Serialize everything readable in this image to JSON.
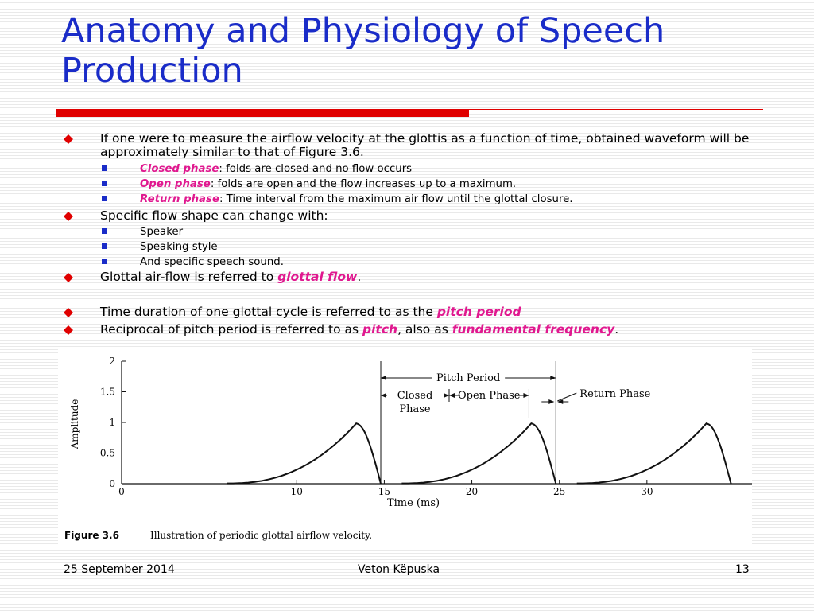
{
  "slide": {
    "title": "Anatomy and Physiology of Speech Production",
    "bullets": {
      "b1": "If one were to measure the airflow velocity at the glottis as a function of time, obtained waveform will be approximately similar to that of Figure 3.6.",
      "b1_subs": [
        {
          "term": "Closed phase",
          "text": ": folds are closed and no flow occurs"
        },
        {
          "term": "Open phase",
          "text": ": folds are open and the flow increases up to a maximum."
        },
        {
          "term": "Return phase",
          "text": ": Time interval from the maximum air flow until the glottal closure."
        }
      ],
      "b2": "Specific flow shape can change with:",
      "b2_subs": [
        "Speaker",
        "Speaking style",
        "And specific speech sound."
      ],
      "b3": {
        "pre": "Glottal air-flow is referred to ",
        "term": "glottal flow",
        "post": "."
      },
      "b4": {
        "pre": "Time duration of one glottal cycle is referred to as the ",
        "term": "pitch period"
      },
      "b5": {
        "pre": "Reciprocal of pitch period is referred to as ",
        "term1": "pitch",
        "mid": ", also as ",
        "term2": "fundamental frequency",
        "post": "."
      }
    },
    "colors": {
      "title": "#1a2cc8",
      "accent": "#e0188f",
      "rule": "#e00000"
    }
  },
  "figure": {
    "caption_label": "Figure 3.6",
    "caption_text": "Illustration of periodic glottal airflow velocity.",
    "annotations": {
      "pitch_period": "Pitch Period",
      "closed_phase_1": "Closed",
      "closed_phase_2": "Phase",
      "open_phase": "Open Phase",
      "return_phase": "Return Phase"
    }
  },
  "chart_data": {
    "type": "line",
    "xlabel": "Time (ms)",
    "ylabel": "Amplitude",
    "xlim": [
      0,
      36
    ],
    "ylim": [
      0,
      2
    ],
    "xticks": [
      "0",
      "10",
      "15",
      "20",
      "25",
      "30"
    ],
    "xtick_values": [
      0,
      10,
      15,
      20,
      25,
      30
    ],
    "yticks": [
      "0",
      "0.5",
      "1",
      "1.5",
      "2"
    ],
    "ytick_values": [
      0,
      0.5,
      1,
      1.5,
      2
    ],
    "pulses": [
      {
        "start": 6,
        "peak_x": 13.4,
        "peak_y": 1.0,
        "end": 14.8
      },
      {
        "start": 16,
        "peak_x": 23.4,
        "peak_y": 1.0,
        "end": 24.8
      },
      {
        "start": 26,
        "peak_x": 33.4,
        "peak_y": 1.0,
        "end": 34.8
      }
    ],
    "markers": [
      14.8,
      24.8
    ]
  },
  "footer": {
    "date": "25 September 2014",
    "author": "Veton Këpuska",
    "page": "13"
  }
}
